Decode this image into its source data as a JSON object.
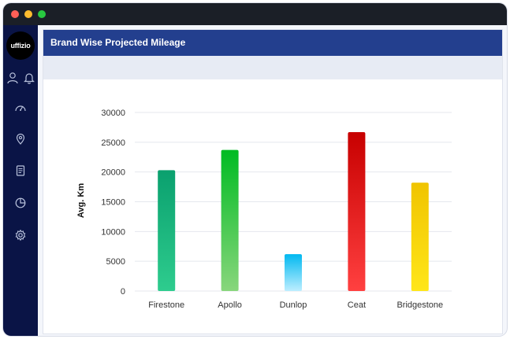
{
  "window": {
    "controls": [
      "close",
      "minimize",
      "maximize"
    ]
  },
  "sidebar": {
    "logo_text": "uffizio",
    "icons": [
      "user-icon",
      "bell-icon",
      "dashboard-gauge-icon",
      "location-pin-icon",
      "report-document-icon",
      "pie-chart-icon",
      "settings-gear-icon"
    ]
  },
  "page": {
    "header_title": "Brand Wise Projected Mileage"
  },
  "colors": {
    "sidebar": "#0a1446",
    "header": "#233f8e",
    "subbar": "#e7ebf4"
  },
  "chart_data": {
    "type": "bar",
    "title": "",
    "xlabel": "",
    "ylabel": "Avg. Km",
    "ylim": [
      0,
      30000
    ],
    "yticks": [
      0,
      5000,
      10000,
      15000,
      20000,
      25000,
      30000
    ],
    "categories": [
      "Firestone",
      "Apollo",
      "Dunlop",
      "Ceat",
      "Bridgestone"
    ],
    "values": [
      20300,
      23700,
      6200,
      26700,
      18200
    ],
    "bar_colors": [
      [
        "#0aa06e",
        "#2ecc8e"
      ],
      [
        "#00bb22",
        "#88d67c"
      ],
      [
        "#00b8f0",
        "#bdeeff"
      ],
      [
        "#c70000",
        "#ff4040"
      ],
      [
        "#f0c400",
        "#ffe619"
      ]
    ],
    "grid": true,
    "legend": "none"
  }
}
